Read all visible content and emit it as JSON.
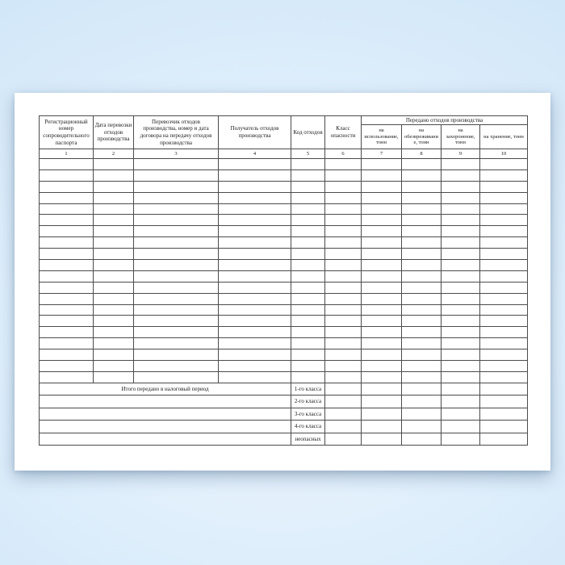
{
  "page": {
    "background_center_color": "#f0f7fd",
    "background_edge_color": "#c9e1f6",
    "paper_color": "#ffffff",
    "grid_line_color": "#4b4b4b",
    "text_color": "#1b1b1b"
  },
  "table": {
    "group_header": "Передано отходов производства",
    "headers": [
      "Регистрационный номер сопроводительного паспорта",
      "Дата перевозки отходов производства",
      "Перевозчик отходов производства, номер и дата договора на передачу отходов производства",
      "Получатель отходов производства",
      "Код отходов",
      "Класс опасности",
      "на использование, тонн",
      "на обезвреживание, тонн",
      "на захоронение, тонн",
      "на хранение, тонн"
    ],
    "column_numbers": [
      "1",
      "2",
      "3",
      "4",
      "5",
      "6",
      "7",
      "8",
      "9",
      "10"
    ],
    "data_row_count": 20,
    "summary": {
      "total_label": "Итого передано в налоговый период",
      "class_labels": [
        "1-го класса",
        "2-го класса",
        "3-го класса",
        "4-го класса",
        "неопасных"
      ]
    }
  }
}
